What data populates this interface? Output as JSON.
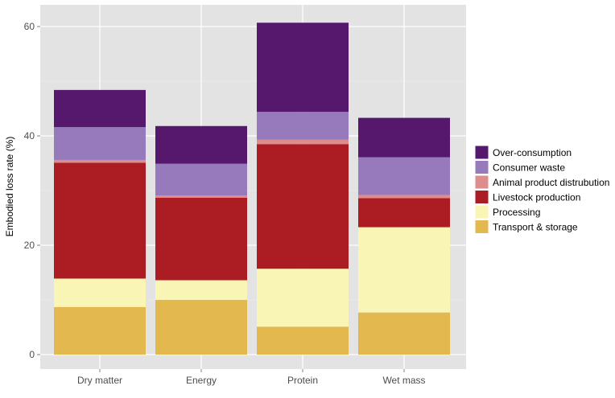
{
  "chart_data": {
    "type": "bar",
    "stacked": true,
    "ylabel": "Embodied loss rate (%)",
    "xlabel": "",
    "ylim": [
      0,
      64
    ],
    "yticks": [
      0,
      20,
      40,
      60
    ],
    "grid": true,
    "legend_position": "right",
    "categories": [
      "Dry matter",
      "Energy",
      "Protein",
      "Wet mass"
    ],
    "series": [
      {
        "name": "Transport & storage",
        "color": "#e3b94f",
        "values": [
          8.7,
          10.0,
          5.1,
          7.7
        ]
      },
      {
        "name": "Processing",
        "color": "#f9f5b4",
        "values": [
          5.2,
          3.6,
          10.6,
          15.6
        ]
      },
      {
        "name": "Livestock production",
        "color": "#ab1c23",
        "values": [
          21.2,
          15.1,
          22.8,
          5.3
        ]
      },
      {
        "name": "Animal product distrubution",
        "color": "#df8c8c",
        "values": [
          0.5,
          0.4,
          0.8,
          0.6
        ]
      },
      {
        "name": "Consumer waste",
        "color": "#967abb",
        "values": [
          6.0,
          5.8,
          5.1,
          6.9
        ]
      },
      {
        "name": "Over-consumption",
        "color": "#56186c",
        "values": [
          6.8,
          6.9,
          16.3,
          7.2
        ]
      }
    ],
    "legend_order": [
      "Over-consumption",
      "Consumer waste",
      "Animal product distrubution",
      "Livestock production",
      "Processing",
      "Transport & storage"
    ]
  }
}
